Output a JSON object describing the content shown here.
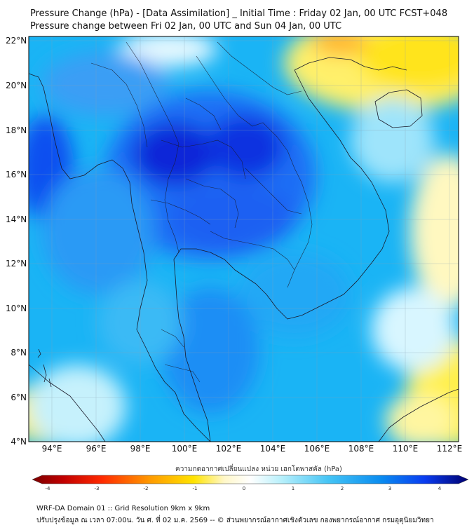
{
  "title_line1": "Pressure Change (hPa) - [Data Assimilation] _ Initial Time : Friday 02 Jan, 00 UTC FCST+048",
  "title_line2": "Pressure change between Fri 02 Jan, 00 UTC and Sun 04 Jan, 00 UTC",
  "lat_labels": [
    "22°N",
    "20°N",
    "18°N",
    "16°N",
    "14°N",
    "12°N",
    "10°N",
    "8°N",
    "6°N",
    "4°N"
  ],
  "lon_labels": [
    "94°E",
    "96°E",
    "98°E",
    "100°E",
    "102°E",
    "104°E",
    "106°E",
    "108°E",
    "110°E",
    "112°E"
  ],
  "colorbar": {
    "title": "ความกดอากาศเปลี่ยนแปลง หน่วย เฮกโตพาสคัล (hPa)",
    "ticks": [
      "-4",
      "-3",
      "-2",
      "-1",
      "0",
      "1",
      "2",
      "3",
      "4"
    ],
    "colors": {
      "negative_dark": "#7a0000",
      "negative": "#ff2a00",
      "neg_mid": "#ffcc00",
      "zero": "#ffffff",
      "pos_mid": "#5fd8f7",
      "positive": "#0a50ff",
      "positive_dark": "#000078"
    }
  },
  "footer_line1": "WRF-DA Domain 01 :: Grid Resolution 9km x 9km",
  "footer_line2": "ปรับปรุงข้อมูล ณ เวลา 07:00น. วัน ศ. ที่ 02 ม.ค. 2569 -- © ส่วนพยากรณ์อากาศเชิงตัวเลข กองพยากรณ์อากาศ กรมอุตุนิยมวิทยา"
}
